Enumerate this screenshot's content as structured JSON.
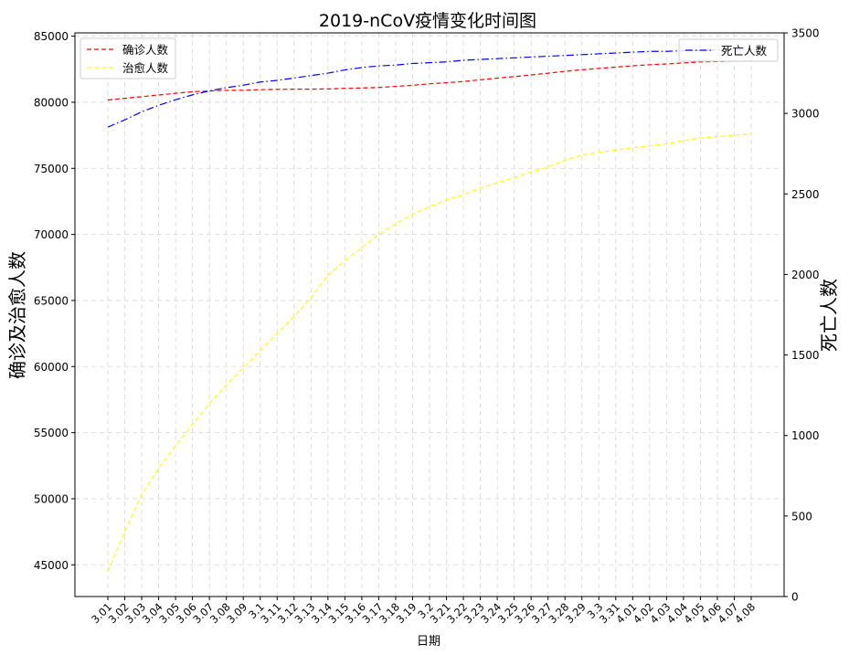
{
  "chart_data": {
    "type": "line",
    "title": "2019-nCoV疫情变化时间图",
    "xlabel": "日期",
    "ylabel_left": "确诊及治愈人数",
    "ylabel_right": "死亡人数",
    "categories": [
      "3.01",
      "3.02",
      "3.03",
      "3.04",
      "3.05",
      "3.06",
      "3.07",
      "3.08",
      "3.09",
      "3.1",
      "3.11",
      "3.12",
      "3.13",
      "3.14",
      "3.15",
      "3.16",
      "3.17",
      "3.18",
      "3.19",
      "3.2",
      "3.21",
      "3.22",
      "3.23",
      "3.24",
      "3.25",
      "3.26",
      "3.27",
      "3.28",
      "3.29",
      "3.3",
      "3.31",
      "4.01",
      "4.02",
      "4.03",
      "4.04",
      "4.05",
      "4.06",
      "4.07",
      "4.08"
    ],
    "y_left_ticks": [
      45000,
      50000,
      55000,
      60000,
      65000,
      70000,
      75000,
      80000,
      85000
    ],
    "y_left_ylim": [
      42600,
      85250
    ],
    "y_right_ticks": [
      0,
      500,
      1000,
      1500,
      2000,
      2500,
      3000,
      3500
    ],
    "y_right_ylim": [
      0,
      3500
    ],
    "grid": true,
    "series": [
      {
        "name": "确诊人数",
        "axis": "left",
        "color": "#ff0000",
        "dash": "dashed",
        "values": [
          80170,
          80300,
          80420,
          80550,
          80680,
          80800,
          80850,
          80900,
          80910,
          80950,
          80980,
          80990,
          80990,
          81010,
          81050,
          81080,
          81120,
          81200,
          81280,
          81400,
          81480,
          81570,
          81700,
          81830,
          81940,
          82070,
          82200,
          82340,
          82460,
          82560,
          82660,
          82760,
          82840,
          82900,
          82980,
          83050,
          83080,
          83120,
          83150
        ]
      },
      {
        "name": "治愈人数",
        "axis": "left",
        "color": "#ffff00",
        "dash": "dashed",
        "values": [
          44500,
          47500,
          50300,
          52300,
          54000,
          55600,
          57200,
          58600,
          59900,
          61200,
          62500,
          63800,
          65200,
          66900,
          68000,
          69000,
          70000,
          70800,
          71500,
          72100,
          72600,
          73000,
          73500,
          73900,
          74300,
          74700,
          75100,
          75600,
          76000,
          76200,
          76400,
          76550,
          76700,
          76850,
          77100,
          77300,
          77400,
          77500,
          77600
        ]
      },
      {
        "name": "死亡人数",
        "axis": "right",
        "color": "#0000ff",
        "dash": "dashdot",
        "values": [
          2915,
          2960,
          3010,
          3050,
          3085,
          3115,
          3140,
          3160,
          3175,
          3195,
          3205,
          3220,
          3235,
          3250,
          3270,
          3285,
          3295,
          3300,
          3310,
          3315,
          3320,
          3330,
          3335,
          3340,
          3345,
          3350,
          3355,
          3360,
          3365,
          3370,
          3375,
          3380,
          3385,
          3385,
          3390,
          3390,
          3395,
          3395,
          3400
        ]
      }
    ]
  }
}
